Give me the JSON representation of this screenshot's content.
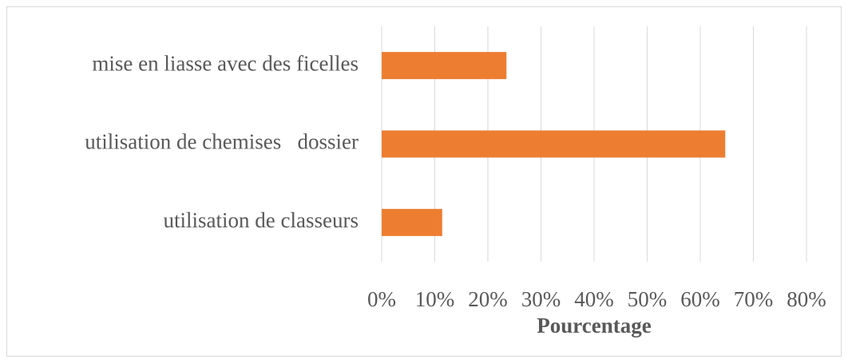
{
  "chart_data": {
    "type": "bar",
    "orientation": "horizontal",
    "categories": [
      "mise en liasse avec des ficelles",
      "utilisation de chemises   dossier",
      "utilisation de classeurs"
    ],
    "values": [
      23.5,
      64.7,
      11.4
    ],
    "color": "#ed7d31",
    "xlabel": "Pourcentage",
    "xlim": [
      0,
      80
    ],
    "xticks": [
      {
        "value": 0,
        "label": "0%"
      },
      {
        "value": 10,
        "label": "10%"
      },
      {
        "value": 20,
        "label": "20%"
      },
      {
        "value": 30,
        "label": "30%"
      },
      {
        "value": 40,
        "label": "40%"
      },
      {
        "value": 50,
        "label": "50%"
      },
      {
        "value": 60,
        "label": "60%"
      },
      {
        "value": 70,
        "label": "70%"
      },
      {
        "value": 80,
        "label": "80%"
      }
    ],
    "grid": true
  }
}
